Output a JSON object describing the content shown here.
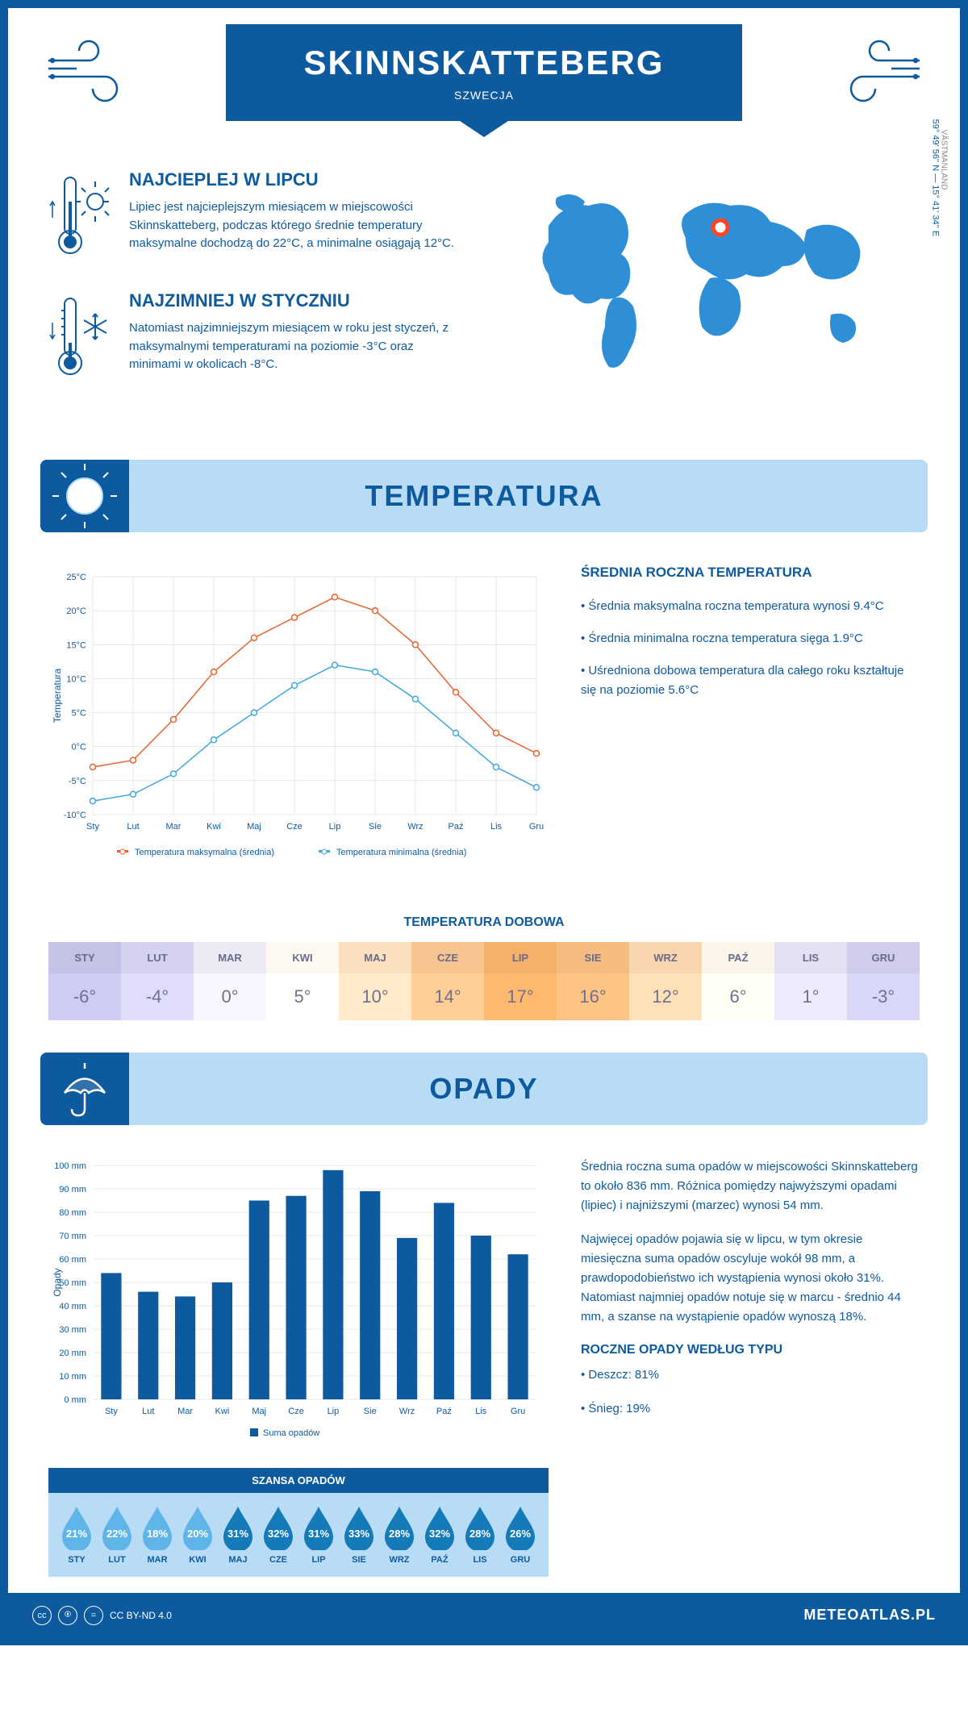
{
  "header": {
    "city": "SKINNSKATTEBERG",
    "country": "SZWECJA"
  },
  "intro": {
    "warmest_title": "NAJCIEPLEJ W LIPCU",
    "warmest_text": "Lipiec jest najcieplejszym miesiącem w miejscowości Skinnskatteberg, podczas którego średnie temperatury maksymalne dochodzą do 22°C, a minimalne osiągają 12°C.",
    "coldest_title": "NAJZIMNIEJ W STYCZNIU",
    "coldest_text": "Natomiast najzimniejszym miesiącem w roku jest styczeń, z maksymalnymi temperaturami na poziomie -3°C oraz minimami w okolicach -8°C.",
    "coords": "59° 49' 56'' N — 15° 41' 34'' E",
    "region": "VÄSTMANLAND"
  },
  "temperature_section": {
    "title": "TEMPERATURA",
    "side_title": "ŚREDNIA ROCZNA TEMPERATURA",
    "side_p1": "• Średnia maksymalna roczna temperatura wynosi 9.4°C",
    "side_p2": "• Średnia minimalna roczna temperatura sięga 1.9°C",
    "side_p3": "• Uśredniona dobowa temperatura dla całego roku kształtuje się na poziomie 5.6°C",
    "chart": {
      "type": "line",
      "months": [
        "Sty",
        "Lut",
        "Mar",
        "Kwi",
        "Maj",
        "Cze",
        "Lip",
        "Sie",
        "Wrz",
        "Paź",
        "Lis",
        "Gru"
      ],
      "max_temp": [
        -3,
        -2,
        4,
        11,
        16,
        19,
        22,
        20,
        15,
        8,
        2,
        -1
      ],
      "min_temp": [
        -8,
        -7,
        -4,
        1,
        5,
        9,
        12,
        11,
        7,
        2,
        -3,
        -6
      ],
      "max_color": "#e8622c",
      "min_color": "#3fa7e0",
      "ylim": [
        -10,
        25
      ],
      "ytick_step": 5,
      "y_label": "Temperatura",
      "grid_color": "#d0d0d0",
      "marker": "circle",
      "line_width": 1.5,
      "legend_max": "Temperatura maksymalna (średnia)",
      "legend_min": "Temperatura minimalna (średnia)"
    },
    "daily_title": "TEMPERATURA DOBOWA",
    "daily": {
      "months": [
        "STY",
        "LUT",
        "MAR",
        "KWI",
        "MAJ",
        "CZE",
        "LIP",
        "SIE",
        "WRZ",
        "PAŹ",
        "LIS",
        "GRU"
      ],
      "values": [
        "-6°",
        "-4°",
        "0°",
        "5°",
        "10°",
        "14°",
        "17°",
        "16°",
        "12°",
        "6°",
        "1°",
        "-3°"
      ],
      "colors": [
        "#c5c2e8",
        "#d4d2ee",
        "#ebeaf5",
        "#fdf8f2",
        "#fbe0c0",
        "#f7c58f",
        "#f5b06a",
        "#f6bb7e",
        "#fad6ae",
        "#fcf3e9",
        "#e2e0f1",
        "#cfcdeb"
      ],
      "text_color": "#6a6a8a"
    }
  },
  "precip_section": {
    "title": "OPADY",
    "side_p1": "Średnia roczna suma opadów w miejscowości Skinnskatteberg to około 836 mm. Różnica pomiędzy najwyższymi opadami (lipiec) i najniższymi (marzec) wynosi 54 mm.",
    "side_p2": "Najwięcej opadów pojawia się w lipcu, w tym okresie miesięczna suma opadów oscyluje wokół 98 mm, a prawdopodobieństwo ich wystąpienia wynosi około 31%. Natomiast najmniej opadów notuje się w marcu - średnio 44 mm, a szanse na wystąpienie opadów wynoszą 18%.",
    "type_title": "ROCZNE OPADY WEDŁUG TYPU",
    "type_rain": "• Deszcz: 81%",
    "type_snow": "• Śnieg: 19%",
    "chart": {
      "type": "bar",
      "months": [
        "Sty",
        "Lut",
        "Mar",
        "Kwi",
        "Maj",
        "Cze",
        "Lip",
        "Sie",
        "Wrz",
        "Paź",
        "Lis",
        "Gru"
      ],
      "values": [
        54,
        46,
        44,
        50,
        85,
        87,
        98,
        89,
        69,
        84,
        70,
        62
      ],
      "bar_color": "#0d5a9e",
      "ylim": [
        0,
        100
      ],
      "ytick_step": 10,
      "y_label": "Opady",
      "grid_color": "#d0d0d0",
      "bar_width": 0.55,
      "legend": "Suma opadów"
    },
    "chance_title": "SZANSA OPADÓW",
    "chance": {
      "months": [
        "STY",
        "LUT",
        "MAR",
        "KWI",
        "MAJ",
        "CZE",
        "LIP",
        "SIE",
        "WRZ",
        "PAŹ",
        "LIS",
        "GRU"
      ],
      "values": [
        "21%",
        "22%",
        "18%",
        "20%",
        "31%",
        "32%",
        "31%",
        "33%",
        "28%",
        "32%",
        "28%",
        "26%"
      ],
      "colors": [
        "#5fb5e8",
        "#5fb5e8",
        "#5fb5e8",
        "#5fb5e8",
        "#157ab8",
        "#157ab8",
        "#157ab8",
        "#157ab8",
        "#157ab8",
        "#157ab8",
        "#157ab8",
        "#157ab8"
      ]
    }
  },
  "footer": {
    "license": "CC BY-ND 4.0",
    "brand": "METEOATLAS.PL"
  },
  "colors": {
    "primary": "#0d5a9e",
    "light_blue": "#b8dcf5",
    "map_blue": "#2e8fd6",
    "marker": "#ff5533"
  }
}
